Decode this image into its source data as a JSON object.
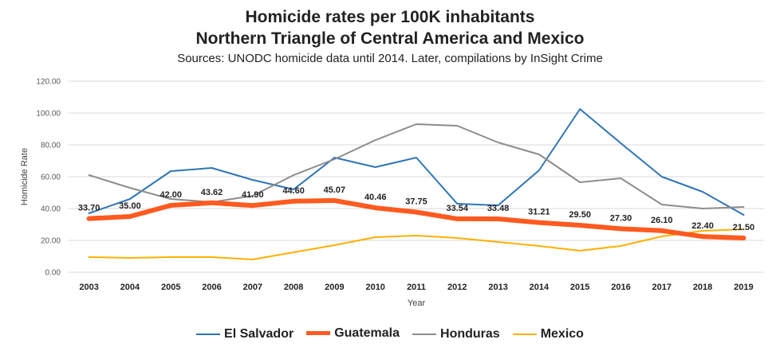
{
  "chart_data": {
    "type": "line",
    "title": "Homicide rates per 100K inhabitants",
    "subtitle": "Northern Triangle of Central America and Mexico",
    "sources": "Sources: UNODC homicide data until 2014. Later, compilations by InSight Crime",
    "xlabel": "Year",
    "ylabel": "Homicide Rate",
    "ylim": [
      0,
      120
    ],
    "yticks": [
      "0.00",
      "20.00",
      "40.00",
      "60.00",
      "80.00",
      "100.00",
      "120.00"
    ],
    "grid": true,
    "legend_position": "bottom",
    "categories": [
      "2003",
      "2004",
      "2005",
      "2006",
      "2007",
      "2008",
      "2009",
      "2010",
      "2011",
      "2012",
      "2013",
      "2014",
      "2015",
      "2016",
      "2017",
      "2018",
      "2019"
    ],
    "series": [
      {
        "name": "El Salvador",
        "color": "#2E75B6",
        "width": 2,
        "values": [
          37,
          46,
          63.5,
          65.5,
          58,
          52,
          72,
          66,
          72,
          43,
          42,
          64,
          102.5,
          81,
          60,
          50.5,
          36
        ]
      },
      {
        "name": "Guatemala",
        "color": "#FF5A1F",
        "width": 6,
        "values": [
          33.7,
          35.0,
          42.0,
          43.62,
          41.9,
          44.6,
          45.07,
          40.46,
          37.75,
          33.54,
          33.48,
          31.21,
          29.5,
          27.3,
          26.1,
          22.4,
          21.5
        ],
        "labels": [
          "33.70",
          "35.00",
          "42.00",
          "43.62",
          "41.90",
          "44.60",
          "45.07",
          "40.46",
          "37.75",
          "33.54",
          "33.48",
          "31.21",
          "29.50",
          "27.30",
          "26.10",
          "22.40",
          "21.50"
        ]
      },
      {
        "name": "Honduras",
        "color": "#8C8C8C",
        "width": 2,
        "values": [
          61,
          53,
          46,
          44,
          48,
          61,
          71,
          83,
          93,
          92,
          81.5,
          74,
          56.5,
          59,
          42.5,
          40,
          41
        ]
      },
      {
        "name": "Mexico",
        "color": "#FFB000",
        "width": 2,
        "values": [
          9.5,
          9,
          9.5,
          9.5,
          8,
          12.5,
          17,
          22,
          23,
          21.5,
          19,
          16.5,
          13.5,
          16.5,
          22.5,
          26,
          27
        ]
      }
    ]
  }
}
